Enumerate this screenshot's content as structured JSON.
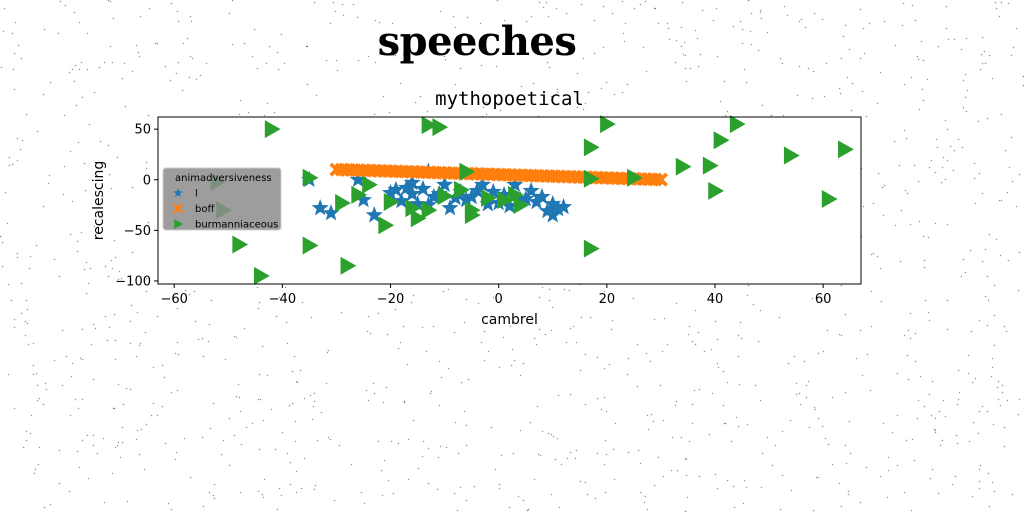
{
  "figure": {
    "suptitle": "speeches"
  },
  "chart_data": {
    "type": "scatter",
    "title": "mythopoetical",
    "xlabel": "cambrel",
    "ylabel": "recalescing",
    "xlim": [
      -63,
      67
    ],
    "ylim": [
      -103,
      62
    ],
    "xticks": [
      -60,
      -40,
      -20,
      0,
      20,
      40,
      60
    ],
    "yticks": [
      -100,
      -50,
      0,
      50
    ],
    "xtick_labels": [
      "−60",
      "−40",
      "−20",
      "0",
      "20",
      "40",
      "60"
    ],
    "ytick_labels": [
      "−100",
      "−50",
      "0",
      "50"
    ],
    "grid": false,
    "legend": {
      "title": "animadversiveness",
      "placement": "center-left"
    },
    "series": [
      {
        "name": "l",
        "marker": "star",
        "color": "#1f77b4",
        "points": [
          [
            -35,
            0
          ],
          [
            -33,
            -28
          ],
          [
            -31,
            -33
          ],
          [
            -26,
            0
          ],
          [
            -25,
            -20
          ],
          [
            -23,
            -35
          ],
          [
            -19,
            -10
          ],
          [
            -18,
            -21
          ],
          [
            -17,
            -8
          ],
          [
            -16,
            -14
          ],
          [
            -15,
            -24
          ],
          [
            -14,
            -9
          ],
          [
            -13,
            -25
          ],
          [
            -12,
            -17
          ],
          [
            -13,
            8
          ],
          [
            -11,
            -14
          ],
          [
            -10,
            -5
          ],
          [
            -9,
            -28
          ],
          [
            -8,
            -18
          ],
          [
            -7,
            -12
          ],
          [
            -6,
            -20
          ],
          [
            -5,
            -17
          ],
          [
            -4,
            -11
          ],
          [
            -3,
            -5
          ],
          [
            -2,
            -24
          ],
          [
            -1,
            -12
          ],
          [
            0,
            -23
          ],
          [
            1,
            -15
          ],
          [
            2,
            -26
          ],
          [
            3,
            -5
          ],
          [
            4,
            -20
          ],
          [
            5,
            -19
          ],
          [
            6,
            -11
          ],
          [
            7,
            -22
          ],
          [
            8,
            -17
          ],
          [
            9,
            -31
          ],
          [
            10,
            -24
          ],
          [
            10,
            -35
          ],
          [
            11,
            -29
          ],
          [
            12,
            -27
          ],
          [
            -16,
            -3
          ],
          [
            -20,
            -13
          ]
        ]
      },
      {
        "name": "boff",
        "marker": "x",
        "color": "#ff7f0e",
        "points": [
          [
            -30,
            10
          ],
          [
            -29,
            10
          ],
          [
            -28,
            9.8
          ],
          [
            -27,
            9.6
          ],
          [
            -26,
            9.5
          ],
          [
            -25,
            9.3
          ],
          [
            -24,
            9.1
          ],
          [
            -23,
            9.0
          ],
          [
            -22,
            8.8
          ],
          [
            -21,
            8.6
          ],
          [
            -20,
            8.5
          ],
          [
            -19,
            8.3
          ],
          [
            -18,
            8.1
          ],
          [
            -17,
            8.0
          ],
          [
            -16,
            7.8
          ],
          [
            -15,
            7.6
          ],
          [
            -14,
            7.5
          ],
          [
            -13,
            7.3
          ],
          [
            -12,
            7.1
          ],
          [
            -11,
            7.0
          ],
          [
            -10,
            6.8
          ],
          [
            -9,
            6.6
          ],
          [
            -8,
            6.5
          ],
          [
            -7,
            6.3
          ],
          [
            -6,
            6.1
          ],
          [
            -5,
            6.0
          ],
          [
            -4,
            5.8
          ],
          [
            -3,
            5.6
          ],
          [
            -2,
            5.5
          ],
          [
            -1,
            5.3
          ],
          [
            0,
            5.1
          ],
          [
            1,
            5.0
          ],
          [
            2,
            4.8
          ],
          [
            3,
            4.6
          ],
          [
            4,
            4.5
          ],
          [
            5,
            4.3
          ],
          [
            6,
            4.1
          ],
          [
            7,
            4.0
          ],
          [
            8,
            3.8
          ],
          [
            9,
            3.6
          ],
          [
            10,
            3.5
          ],
          [
            11,
            3.3
          ],
          [
            12,
            3.1
          ],
          [
            13,
            3.0
          ],
          [
            14,
            2.8
          ],
          [
            15,
            2.6
          ],
          [
            16,
            2.5
          ],
          [
            17,
            2.3
          ],
          [
            18,
            2.1
          ],
          [
            19,
            2.0
          ],
          [
            20,
            1.8
          ],
          [
            21,
            1.6
          ],
          [
            22,
            1.5
          ],
          [
            23,
            1.3
          ],
          [
            24,
            1.1
          ],
          [
            25,
            1.0
          ],
          [
            26,
            0.8
          ],
          [
            27,
            0.6
          ],
          [
            28,
            0.5
          ],
          [
            29,
            0.3
          ],
          [
            30,
            0.1
          ]
        ]
      },
      {
        "name": "burmanniaceous",
        "marker": "triangle-right",
        "color": "#2ca02c",
        "points": [
          [
            -42,
            50
          ],
          [
            -13,
            54
          ],
          [
            -11,
            52
          ],
          [
            20,
            55
          ],
          [
            17,
            32
          ],
          [
            44,
            55
          ],
          [
            41,
            39
          ],
          [
            54,
            24
          ],
          [
            64,
            30
          ],
          [
            -35,
            -65
          ],
          [
            -48,
            -64
          ],
          [
            -44,
            -95
          ],
          [
            -28,
            -85
          ],
          [
            -51,
            -30
          ],
          [
            -52,
            -2
          ],
          [
            -35,
            2
          ],
          [
            -29,
            -23
          ],
          [
            -26,
            -15
          ],
          [
            -21,
            -45
          ],
          [
            -15,
            -38
          ],
          [
            -10,
            -16
          ],
          [
            -6,
            8
          ],
          [
            -5,
            -30
          ],
          [
            -2,
            -18
          ],
          [
            1,
            -20
          ],
          [
            4,
            -25
          ],
          [
            17,
            -68
          ],
          [
            17,
            1
          ],
          [
            25,
            2
          ],
          [
            34,
            13
          ],
          [
            39,
            14
          ],
          [
            40,
            -11
          ],
          [
            61,
            -19
          ],
          [
            -13,
            -30
          ],
          [
            -7,
            -10
          ],
          [
            -20,
            -22
          ],
          [
            3,
            -15
          ],
          [
            -16,
            -28
          ],
          [
            -5,
            -35
          ],
          [
            -24,
            -5
          ]
        ]
      }
    ]
  }
}
